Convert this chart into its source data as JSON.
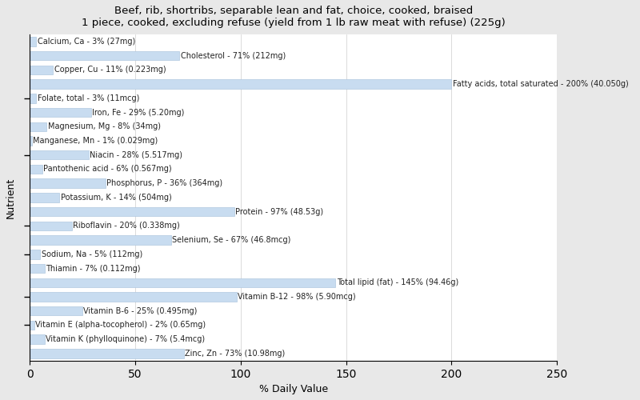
{
  "title": "Beef, rib, shortribs, separable lean and fat, choice, cooked, braised\n1 piece, cooked, excluding refuse (yield from 1 lb raw meat with refuse) (225g)",
  "xlabel": "% Daily Value",
  "ylabel": "Nutrient",
  "xlim": [
    0,
    250
  ],
  "xticks": [
    0,
    50,
    100,
    150,
    200,
    250
  ],
  "bar_color": "#c8dcf0",
  "bar_edge_color": "#b0c8e0",
  "background_color": "#e8e8e8",
  "plot_background": "#ffffff",
  "label_fontsize": 7.0,
  "title_fontsize": 9.5,
  "nutrients": [
    {
      "label": "Calcium, Ca - 3% (27mg)",
      "value": 3
    },
    {
      "label": "Cholesterol - 71% (212mg)",
      "value": 71
    },
    {
      "label": "Copper, Cu - 11% (0.223mg)",
      "value": 11
    },
    {
      "label": "Fatty acids, total saturated - 200% (40.050g)",
      "value": 200
    },
    {
      "label": "Folate, total - 3% (11mcg)",
      "value": 3
    },
    {
      "label": "Iron, Fe - 29% (5.20mg)",
      "value": 29
    },
    {
      "label": "Magnesium, Mg - 8% (34mg)",
      "value": 8
    },
    {
      "label": "Manganese, Mn - 1% (0.029mg)",
      "value": 1
    },
    {
      "label": "Niacin - 28% (5.517mg)",
      "value": 28
    },
    {
      "label": "Pantothenic acid - 6% (0.567mg)",
      "value": 6
    },
    {
      "label": "Phosphorus, P - 36% (364mg)",
      "value": 36
    },
    {
      "label": "Potassium, K - 14% (504mg)",
      "value": 14
    },
    {
      "label": "Protein - 97% (48.53g)",
      "value": 97
    },
    {
      "label": "Riboflavin - 20% (0.338mg)",
      "value": 20
    },
    {
      "label": "Selenium, Se - 67% (46.8mcg)",
      "value": 67
    },
    {
      "label": "Sodium, Na - 5% (112mg)",
      "value": 5
    },
    {
      "label": "Thiamin - 7% (0.112mg)",
      "value": 7
    },
    {
      "label": "Total lipid (fat) - 145% (94.46g)",
      "value": 145
    },
    {
      "label": "Vitamin B-12 - 98% (5.90mcg)",
      "value": 98
    },
    {
      "label": "Vitamin B-6 - 25% (0.495mg)",
      "value": 25
    },
    {
      "label": "Vitamin E (alpha-tocopherol) - 2% (0.65mg)",
      "value": 2
    },
    {
      "label": "Vitamin K (phylloquinone) - 7% (5.4mcg)",
      "value": 7
    },
    {
      "label": "Zinc, Zn - 73% (10.98mg)",
      "value": 73
    }
  ],
  "tick_boundaries_original_idx": [
    3.5,
    7.5,
    12.5,
    14.5,
    17.5,
    19.5
  ]
}
